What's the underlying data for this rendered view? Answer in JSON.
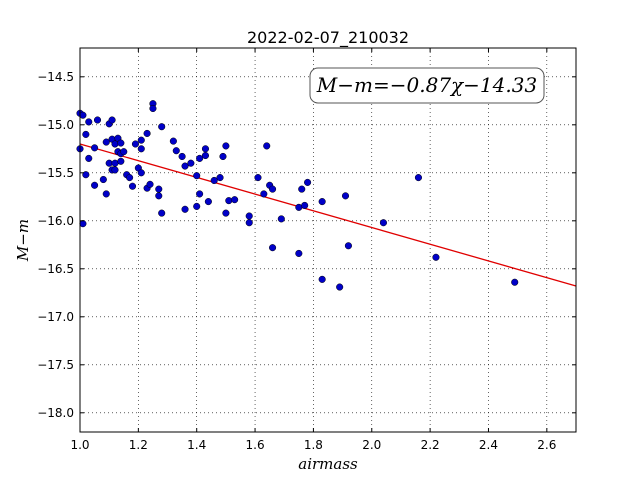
{
  "chart_data": {
    "type": "scatter",
    "title": "2022-02-07_210032",
    "xlabel": "airmass",
    "ylabel": "M−m",
    "xlim": [
      1.0,
      2.7
    ],
    "ylim": [
      -18.2,
      -14.2
    ],
    "y_inverted": true,
    "grid": true,
    "x_ticks": [
      1.0,
      1.2,
      1.4,
      1.6,
      1.8,
      2.0,
      2.2,
      2.4,
      2.6
    ],
    "x_tick_labels": [
      "1.0",
      "1.2",
      "1.4",
      "1.6",
      "1.8",
      "2.0",
      "2.2",
      "2.4",
      "2.6"
    ],
    "y_ticks": [
      -14.5,
      -15.0,
      -15.5,
      -16.0,
      -16.5,
      -17.0,
      -17.5,
      -18.0
    ],
    "y_tick_labels": [
      "−14.5",
      "−15.0",
      "−15.5",
      "−16.0",
      "−16.5",
      "−17.0",
      "−17.5",
      "−18.0"
    ],
    "annotation": "M−m=−0.87χ−14.33",
    "fit": {
      "slope": -0.87,
      "intercept": -14.33,
      "color": "#e00000"
    },
    "marker_color": "#0000c8",
    "points": [
      [
        1.0,
        -14.88
      ],
      [
        1.0,
        -15.25
      ],
      [
        1.01,
        -16.03
      ],
      [
        1.01,
        -14.9
      ],
      [
        1.02,
        -15.1
      ],
      [
        1.02,
        -15.52
      ],
      [
        1.03,
        -15.35
      ],
      [
        1.03,
        -14.97
      ],
      [
        1.05,
        -15.24
      ],
      [
        1.05,
        -15.63
      ],
      [
        1.06,
        -14.95
      ],
      [
        1.08,
        -15.57
      ],
      [
        1.09,
        -15.18
      ],
      [
        1.09,
        -15.72
      ],
      [
        1.1,
        -14.99
      ],
      [
        1.1,
        -15.4
      ],
      [
        1.11,
        -15.15
      ],
      [
        1.11,
        -14.95
      ],
      [
        1.11,
        -15.47
      ],
      [
        1.12,
        -15.4
      ],
      [
        1.12,
        -15.47
      ],
      [
        1.12,
        -15.2
      ],
      [
        1.13,
        -15.14
      ],
      [
        1.13,
        -15.28
      ],
      [
        1.14,
        -15.19
      ],
      [
        1.14,
        -15.3
      ],
      [
        1.14,
        -15.38
      ],
      [
        1.15,
        -15.28
      ],
      [
        1.16,
        -15.52
      ],
      [
        1.17,
        -15.55
      ],
      [
        1.18,
        -15.64
      ],
      [
        1.19,
        -15.2
      ],
      [
        1.2,
        -15.45
      ],
      [
        1.21,
        -15.16
      ],
      [
        1.21,
        -15.25
      ],
      [
        1.21,
        -15.5
      ],
      [
        1.23,
        -15.66
      ],
      [
        1.23,
        -15.09
      ],
      [
        1.24,
        -15.62
      ],
      [
        1.25,
        -14.78
      ],
      [
        1.25,
        -14.83
      ],
      [
        1.27,
        -15.74
      ],
      [
        1.27,
        -15.67
      ],
      [
        1.28,
        -15.02
      ],
      [
        1.28,
        -15.92
      ],
      [
        1.32,
        -15.17
      ],
      [
        1.33,
        -15.27
      ],
      [
        1.35,
        -15.33
      ],
      [
        1.36,
        -15.43
      ],
      [
        1.36,
        -15.88
      ],
      [
        1.38,
        -15.4
      ],
      [
        1.4,
        -15.85
      ],
      [
        1.4,
        -15.53
      ],
      [
        1.41,
        -15.35
      ],
      [
        1.41,
        -15.72
      ],
      [
        1.43,
        -15.32
      ],
      [
        1.43,
        -15.25
      ],
      [
        1.44,
        -15.8
      ],
      [
        1.46,
        -15.58
      ],
      [
        1.48,
        -15.55
      ],
      [
        1.49,
        -15.33
      ],
      [
        1.5,
        -15.22
      ],
      [
        1.5,
        -15.92
      ],
      [
        1.51,
        -15.79
      ],
      [
        1.53,
        -15.78
      ],
      [
        1.58,
        -16.02
      ],
      [
        1.58,
        -15.95
      ],
      [
        1.61,
        -15.55
      ],
      [
        1.63,
        -15.72
      ],
      [
        1.64,
        -15.22
      ],
      [
        1.65,
        -15.63
      ],
      [
        1.66,
        -15.67
      ],
      [
        1.66,
        -16.28
      ],
      [
        1.69,
        -15.98
      ],
      [
        1.75,
        -15.86
      ],
      [
        1.75,
        -16.34
      ],
      [
        1.76,
        -15.67
      ],
      [
        1.77,
        -15.84
      ],
      [
        1.78,
        -15.6
      ],
      [
        1.83,
        -16.61
      ],
      [
        1.83,
        -15.8
      ],
      [
        1.89,
        -16.69
      ],
      [
        1.91,
        -15.74
      ],
      [
        1.92,
        -16.26
      ],
      [
        2.04,
        -16.02
      ],
      [
        2.16,
        -15.55
      ],
      [
        2.22,
        -16.38
      ],
      [
        2.49,
        -16.64
      ]
    ]
  }
}
